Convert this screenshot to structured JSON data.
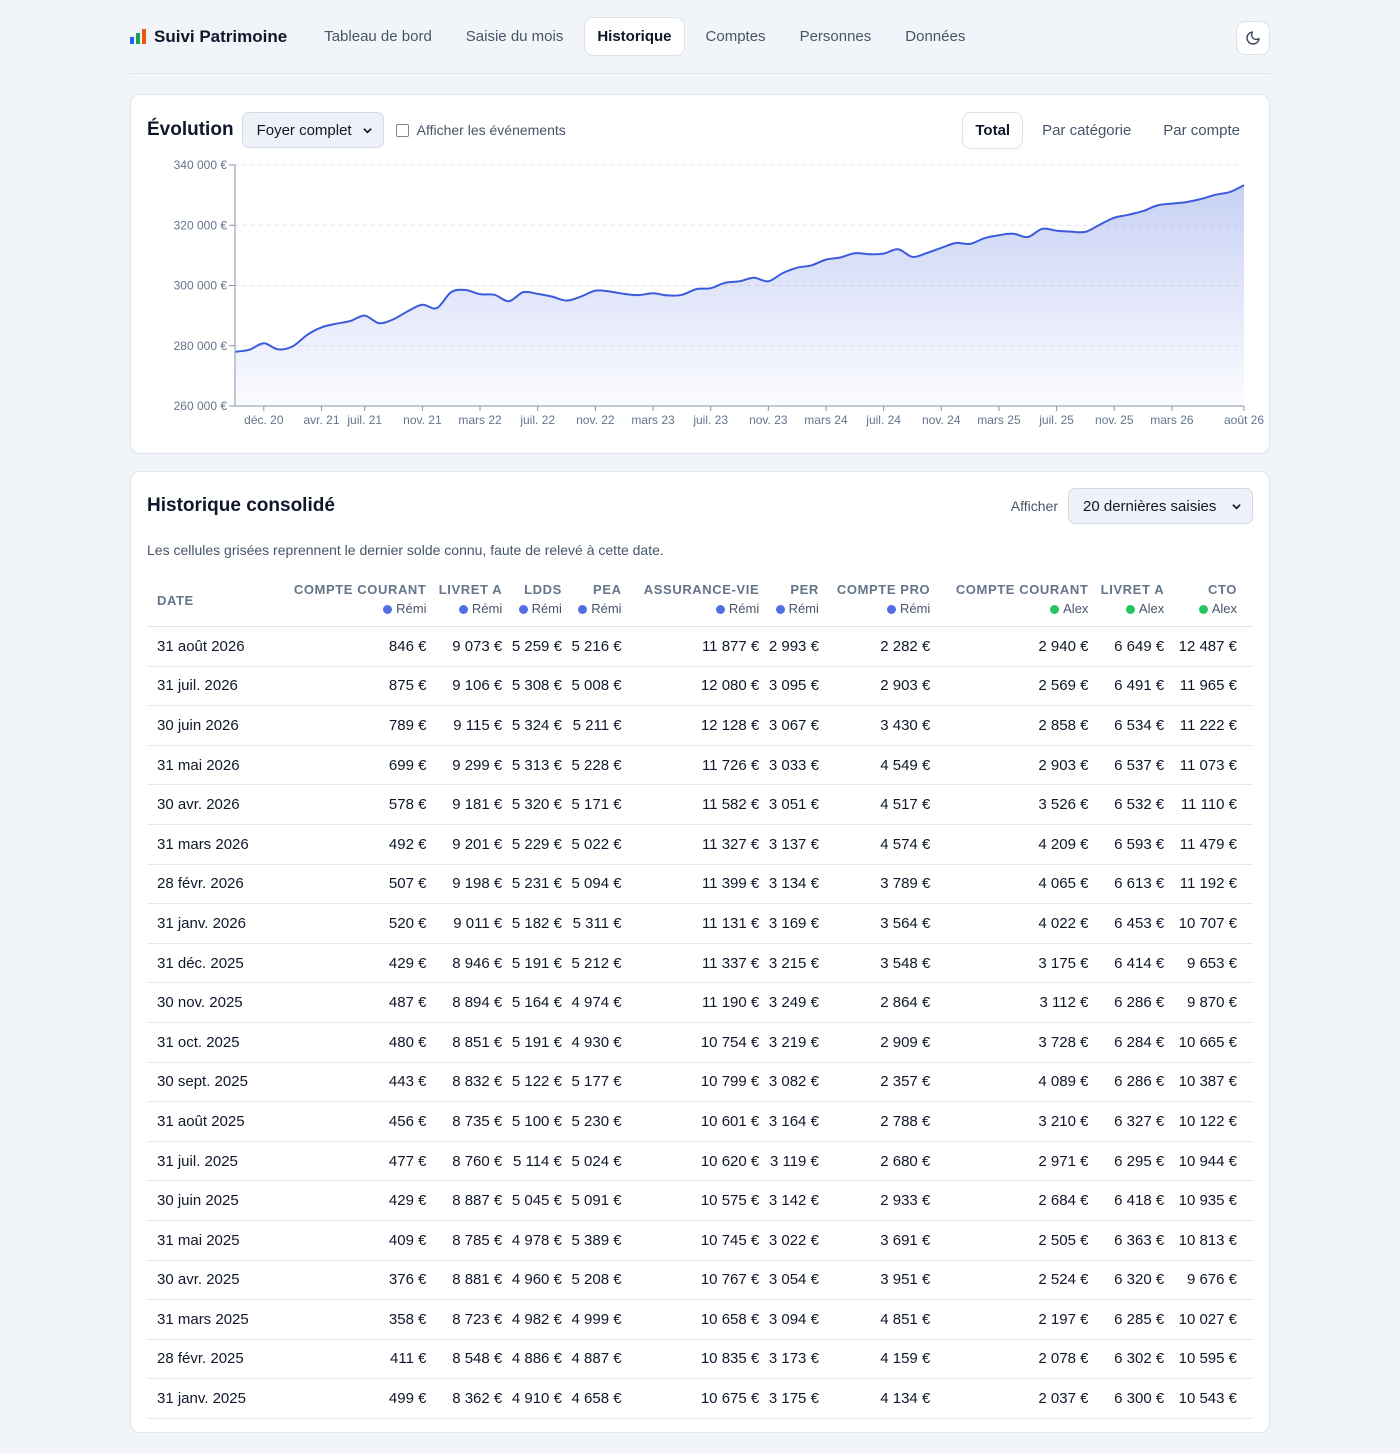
{
  "app": {
    "title": "Suivi Patrimoine",
    "icon_colors": [
      "#2563eb",
      "#16a34a",
      "#ea580c"
    ]
  },
  "nav": {
    "tabs": [
      {
        "label": "Tableau de bord",
        "active": false
      },
      {
        "label": "Saisie du mois",
        "active": false
      },
      {
        "label": "Historique",
        "active": true
      },
      {
        "label": "Comptes",
        "active": false
      },
      {
        "label": "Personnes",
        "active": false
      },
      {
        "label": "Données",
        "active": false
      }
    ],
    "theme_icon": "moon-icon"
  },
  "evolution": {
    "title": "Évolution",
    "scope_select": "Foyer complet",
    "events_checkbox_label": "Afficher les événements",
    "events_checked": false,
    "view_buttons": [
      "Total",
      "Par catégorie",
      "Par compte"
    ],
    "active_view": "Total"
  },
  "chart_data": {
    "type": "area",
    "title": "",
    "xlabel": "",
    "ylabel": "",
    "ylim": [
      260000,
      340000
    ],
    "yticks": [
      "340 000 €",
      "320 000 €",
      "300 000 €",
      "280 000 €",
      "260 000 €"
    ],
    "ytick_values": [
      340000,
      320000,
      300000,
      280000,
      260000
    ],
    "xticks": [
      "déc. 20",
      "avr. 21",
      "juil. 21",
      "nov. 21",
      "mars 22",
      "juil. 22",
      "nov. 22",
      "mars 23",
      "juil. 23",
      "nov. 23",
      "mars 24",
      "juil. 24",
      "nov. 24",
      "mars 25",
      "juil. 25",
      "nov. 25",
      "mars 26",
      "août 26"
    ],
    "xtick_months": [
      "2020-12",
      "2021-04",
      "2021-07",
      "2021-11",
      "2022-03",
      "2022-07",
      "2022-11",
      "2023-03",
      "2023-07",
      "2023-11",
      "2024-03",
      "2024-07",
      "2024-11",
      "2025-03",
      "2025-07",
      "2025-11",
      "2026-03",
      "2026-08"
    ],
    "grid": true,
    "color": "#3b5bdb",
    "series": [
      {
        "months": [
          "2020-10",
          "2020-11",
          "2020-12",
          "2021-01",
          "2021-02",
          "2021-03",
          "2021-04",
          "2021-05",
          "2021-06",
          "2021-07",
          "2021-08",
          "2021-09",
          "2021-10",
          "2021-11",
          "2021-12",
          "2022-01",
          "2022-02",
          "2022-03",
          "2022-04",
          "2022-05",
          "2022-06",
          "2022-07",
          "2022-08",
          "2022-09",
          "2022-10",
          "2022-11",
          "2022-12",
          "2023-01",
          "2023-02",
          "2023-03",
          "2023-04",
          "2023-05",
          "2023-06",
          "2023-07",
          "2023-08",
          "2023-09",
          "2023-10",
          "2023-11",
          "2023-12",
          "2024-01",
          "2024-02",
          "2024-03",
          "2024-04",
          "2024-05",
          "2024-06",
          "2024-07",
          "2024-08",
          "2024-09",
          "2024-10",
          "2024-11",
          "2024-12",
          "2025-01",
          "2025-02",
          "2025-03",
          "2025-04",
          "2025-05",
          "2025-06",
          "2025-07",
          "2025-08",
          "2025-09",
          "2025-10",
          "2025-11",
          "2025-12",
          "2026-01",
          "2026-02",
          "2026-03",
          "2026-04",
          "2026-05",
          "2026-06",
          "2026-07",
          "2026-08"
        ],
        "values": [
          278000,
          278700,
          280800,
          278800,
          279800,
          283600,
          286100,
          287300,
          288200,
          290000,
          287500,
          288800,
          291500,
          293600,
          292500,
          297800,
          298500,
          297100,
          296900,
          294800,
          297800,
          297200,
          296300,
          295000,
          296300,
          298300,
          298000,
          297200,
          296800,
          297400,
          296700,
          296900,
          298800,
          299100,
          300900,
          301400,
          302600,
          301400,
          304100,
          305900,
          306700,
          308600,
          309300,
          310700,
          310400,
          310600,
          312000,
          309500,
          310800,
          312500,
          314100,
          313800,
          315700,
          316700,
          317200,
          316100,
          318800,
          318200,
          317900,
          317800,
          320200,
          322500,
          323500,
          324700,
          326600,
          327200,
          327700,
          328700,
          330100,
          331000,
          333300
        ]
      }
    ]
  },
  "history": {
    "title": "Historique consolidé",
    "show_label": "Afficher",
    "show_select": "20 dernières saisies",
    "note": "Les cellules grisées reprennent le dernier solde connu, faute de relevé à cette date.",
    "owner_colors": {
      "Rémi": "#4f6fe3",
      "Alex": "#22c55e"
    },
    "columns": [
      {
        "label": "Date",
        "owner": ""
      },
      {
        "label": "Compte courant",
        "owner": "Rémi"
      },
      {
        "label": "Livret A",
        "owner": "Rémi"
      },
      {
        "label": "LDDS",
        "owner": "Rémi"
      },
      {
        "label": "PEA",
        "owner": "Rémi"
      },
      {
        "label": "Assurance-vie",
        "owner": "Rémi"
      },
      {
        "label": "PER",
        "owner": "Rémi"
      },
      {
        "label": "Compte pro",
        "owner": "Rémi"
      },
      {
        "label": "Compte courant",
        "owner": "Alex"
      },
      {
        "label": "Livret A",
        "owner": "Alex"
      },
      {
        "label": "CTO",
        "owner": "Alex"
      }
    ],
    "rows": [
      [
        "31 août 2026",
        "846 €",
        "9 073 €",
        "5 259 €",
        "5 216 €",
        "11 877 €",
        "2 993 €",
        "2 282 €",
        "2 940 €",
        "6 649 €",
        "12 487 €"
      ],
      [
        "31 juil. 2026",
        "875 €",
        "9 106 €",
        "5 308 €",
        "5 008 €",
        "12 080 €",
        "3 095 €",
        "2 903 €",
        "2 569 €",
        "6 491 €",
        "11 965 €"
      ],
      [
        "30 juin 2026",
        "789 €",
        "9 115 €",
        "5 324 €",
        "5 211 €",
        "12 128 €",
        "3 067 €",
        "3 430 €",
        "2 858 €",
        "6 534 €",
        "11 222 €"
      ],
      [
        "31 mai 2026",
        "699 €",
        "9 299 €",
        "5 313 €",
        "5 228 €",
        "11 726 €",
        "3 033 €",
        "4 549 €",
        "2 903 €",
        "6 537 €",
        "11 073 €"
      ],
      [
        "30 avr. 2026",
        "578 €",
        "9 181 €",
        "5 320 €",
        "5 171 €",
        "11 582 €",
        "3 051 €",
        "4 517 €",
        "3 526 €",
        "6 532 €",
        "11 110 €"
      ],
      [
        "31 mars 2026",
        "492 €",
        "9 201 €",
        "5 229 €",
        "5 022 €",
        "11 327 €",
        "3 137 €",
        "4 574 €",
        "4 209 €",
        "6 593 €",
        "11 479 €"
      ],
      [
        "28 févr. 2026",
        "507 €",
        "9 198 €",
        "5 231 €",
        "5 094 €",
        "11 399 €",
        "3 134 €",
        "3 789 €",
        "4 065 €",
        "6 613 €",
        "11 192 €"
      ],
      [
        "31 janv. 2026",
        "520 €",
        "9 011 €",
        "5 182 €",
        "5 311 €",
        "11 131 €",
        "3 169 €",
        "3 564 €",
        "4 022 €",
        "6 453 €",
        "10 707 €"
      ],
      [
        "31 déc. 2025",
        "429 €",
        "8 946 €",
        "5 191 €",
        "5 212 €",
        "11 337 €",
        "3 215 €",
        "3 548 €",
        "3 175 €",
        "6 414 €",
        "9 653 €"
      ],
      [
        "30 nov. 2025",
        "487 €",
        "8 894 €",
        "5 164 €",
        "4 974 €",
        "11 190 €",
        "3 249 €",
        "2 864 €",
        "3 112 €",
        "6 286 €",
        "9 870 €"
      ],
      [
        "31 oct. 2025",
        "480 €",
        "8 851 €",
        "5 191 €",
        "4 930 €",
        "10 754 €",
        "3 219 €",
        "2 909 €",
        "3 728 €",
        "6 284 €",
        "10 665 €"
      ],
      [
        "30 sept. 2025",
        "443 €",
        "8 832 €",
        "5 122 €",
        "5 177 €",
        "10 799 €",
        "3 082 €",
        "2 357 €",
        "4 089 €",
        "6 286 €",
        "10 387 €"
      ],
      [
        "31 août 2025",
        "456 €",
        "8 735 €",
        "5 100 €",
        "5 230 €",
        "10 601 €",
        "3 164 €",
        "2 788 €",
        "3 210 €",
        "6 327 €",
        "10 122 €"
      ],
      [
        "31 juil. 2025",
        "477 €",
        "8 760 €",
        "5 114 €",
        "5 024 €",
        "10 620 €",
        "3 119 €",
        "2 680 €",
        "2 971 €",
        "6 295 €",
        "10 944 €"
      ],
      [
        "30 juin 2025",
        "429 €",
        "8 887 €",
        "5 045 €",
        "5 091 €",
        "10 575 €",
        "3 142 €",
        "2 933 €",
        "2 684 €",
        "6 418 €",
        "10 935 €"
      ],
      [
        "31 mai 2025",
        "409 €",
        "8 785 €",
        "4 978 €",
        "5 389 €",
        "10 745 €",
        "3 022 €",
        "3 691 €",
        "2 505 €",
        "6 363 €",
        "10 813 €"
      ],
      [
        "30 avr. 2025",
        "376 €",
        "8 881 €",
        "4 960 €",
        "5 208 €",
        "10 767 €",
        "3 054 €",
        "3 951 €",
        "2 524 €",
        "6 320 €",
        "9 676 €"
      ],
      [
        "31 mars 2025",
        "358 €",
        "8 723 €",
        "4 982 €",
        "4 999 €",
        "10 658 €",
        "3 094 €",
        "4 851 €",
        "2 197 €",
        "6 285 €",
        "10 027 €"
      ],
      [
        "28 févr. 2025",
        "411 €",
        "8 548 €",
        "4 886 €",
        "4 887 €",
        "10 835 €",
        "3 173 €",
        "4 159 €",
        "2 078 €",
        "6 302 €",
        "10 595 €"
      ],
      [
        "31 janv. 2025",
        "499 €",
        "8 362 €",
        "4 910 €",
        "4 658 €",
        "10 675 €",
        "3 175 €",
        "4 134 €",
        "2 037 €",
        "6 300 €",
        "10 543 €"
      ]
    ]
  }
}
